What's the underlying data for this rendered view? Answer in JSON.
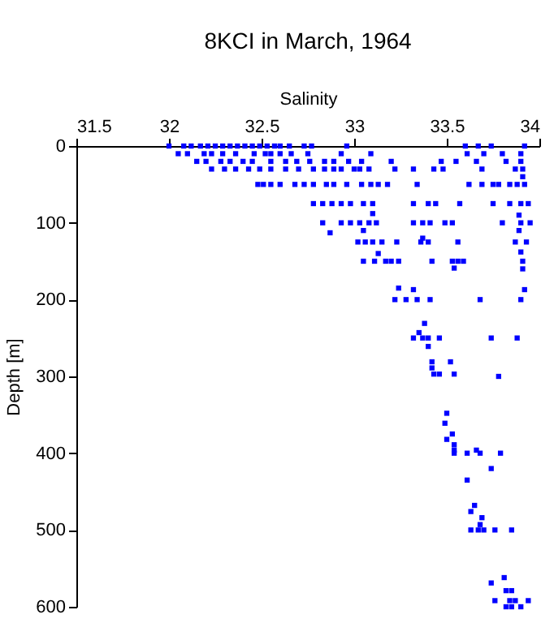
{
  "chart_data": {
    "type": "scatter",
    "title": "8KCI in March, 1964",
    "xlabel": "Salinity",
    "ylabel": "Depth [m]",
    "x": [
      32.0,
      32.08,
      32.12,
      32.17,
      32.21,
      32.25,
      32.29,
      32.33,
      32.37,
      32.41,
      32.45,
      32.49,
      32.53,
      32.57,
      32.6,
      32.65,
      32.73,
      32.77,
      32.96,
      33.6,
      33.67,
      33.74,
      33.92,
      32.05,
      32.1,
      32.19,
      32.23,
      32.29,
      32.36,
      32.46,
      32.52,
      32.55,
      32.6,
      32.66,
      32.75,
      32.93,
      33.09,
      33.61,
      33.7,
      33.8,
      33.9,
      32.15,
      32.2,
      32.28,
      32.33,
      32.4,
      32.45,
      32.55,
      32.63,
      32.69,
      32.76,
      32.84,
      32.89,
      32.97,
      33.04,
      33.2,
      33.47,
      33.55,
      33.66,
      33.82,
      33.9,
      32.23,
      32.3,
      32.36,
      32.43,
      32.49,
      32.55,
      32.63,
      32.7,
      32.78,
      32.84,
      32.89,
      32.93,
      33.0,
      33.03,
      33.08,
      33.22,
      33.32,
      33.43,
      33.48,
      33.69,
      33.87,
      33.91,
      33.91,
      32.48,
      32.51,
      32.55,
      32.6,
      32.68,
      32.73,
      32.78,
      32.85,
      32.89,
      32.96,
      33.04,
      33.09,
      33.13,
      33.18,
      33.34,
      33.62,
      33.69,
      33.75,
      33.78,
      33.84,
      33.88,
      33.92,
      32.78,
      32.83,
      32.88,
      32.93,
      32.98,
      33.05,
      33.1,
      33.32,
      33.4,
      33.44,
      33.57,
      33.75,
      33.84,
      33.9,
      33.94,
      33.1,
      33.89,
      32.83,
      32.93,
      32.98,
      33.03,
      33.08,
      33.12,
      33.32,
      33.37,
      33.41,
      33.49,
      33.53,
      33.8,
      33.9,
      33.95,
      33.05,
      33.89,
      32.87,
      33.02,
      33.06,
      33.1,
      33.15,
      33.23,
      33.36,
      33.4,
      33.56,
      33.87,
      33.93,
      33.37,
      33.9,
      33.13,
      33.05,
      33.11,
      33.17,
      33.2,
      33.24,
      33.42,
      33.53,
      33.56,
      33.59,
      33.91,
      33.54,
      33.91,
      33.24,
      33.32,
      33.92,
      33.22,
      33.28,
      33.34,
      33.41,
      33.68,
      33.9,
      33.38,
      33.35,
      33.32,
      33.37,
      33.4,
      33.46,
      33.74,
      33.88,
      33.4,
      33.42,
      33.52,
      33.42,
      33.43,
      33.46,
      33.54,
      33.78,
      33.5,
      33.49,
      33.53,
      33.5,
      33.54,
      33.54,
      33.66,
      33.54,
      33.61,
      33.68,
      33.79,
      33.74,
      33.61,
      33.65,
      33.63,
      33.69,
      33.63,
      33.67,
      33.7,
      33.76,
      33.85,
      33.68,
      33.81,
      33.74,
      33.82,
      33.85,
      33.76,
      33.84,
      33.87,
      33.94,
      33.82,
      33.85,
      33.9
    ],
    "values": [
      0,
      0,
      0,
      0,
      0,
      0,
      0,
      0,
      0,
      0,
      0,
      0,
      0,
      0,
      0,
      0,
      0,
      0,
      0,
      0,
      0,
      0,
      0,
      10,
      10,
      10,
      10,
      10,
      10,
      10,
      10,
      10,
      10,
      10,
      10,
      10,
      10,
      10,
      10,
      10,
      10,
      20,
      20,
      20,
      20,
      20,
      20,
      20,
      20,
      20,
      20,
      20,
      20,
      20,
      20,
      20,
      20,
      20,
      20,
      20,
      20,
      30,
      30,
      30,
      30,
      30,
      30,
      30,
      30,
      30,
      30,
      30,
      30,
      30,
      30,
      30,
      30,
      30,
      30,
      30,
      30,
      30,
      30,
      40,
      50,
      50,
      50,
      50,
      50,
      50,
      50,
      50,
      50,
      50,
      50,
      50,
      50,
      50,
      50,
      50,
      50,
      50,
      50,
      50,
      50,
      50,
      75,
      75,
      75,
      75,
      75,
      75,
      75,
      75,
      75,
      75,
      75,
      75,
      75,
      75,
      75,
      88,
      90,
      100,
      100,
      100,
      100,
      100,
      100,
      100,
      100,
      100,
      100,
      100,
      100,
      100,
      100,
      110,
      110,
      113,
      125,
      125,
      125,
      125,
      125,
      125,
      125,
      125,
      125,
      125,
      120,
      138,
      140,
      150,
      150,
      150,
      150,
      150,
      150,
      150,
      150,
      150,
      150,
      159,
      160,
      185,
      187,
      187,
      200,
      200,
      200,
      200,
      200,
      200,
      231,
      243,
      250,
      250,
      250,
      250,
      250,
      250,
      261,
      281,
      281,
      289,
      297,
      297,
      297,
      300,
      348,
      361,
      375,
      382,
      389,
      396,
      396,
      400,
      400,
      400,
      400,
      420,
      435,
      468,
      476,
      484,
      500,
      500,
      500,
      500,
      500,
      493,
      562,
      569,
      579,
      579,
      592,
      592,
      592,
      592,
      600,
      600,
      600
    ],
    "color": "#0000ff",
    "marker": "square",
    "xlim": [
      31.5,
      34
    ],
    "xticks": [
      31.5,
      32,
      32.5,
      33,
      33.5,
      34
    ],
    "ylim": [
      600,
      0
    ],
    "yticks": [
      0,
      100,
      200,
      300,
      400,
      500,
      600
    ],
    "grid": false
  }
}
